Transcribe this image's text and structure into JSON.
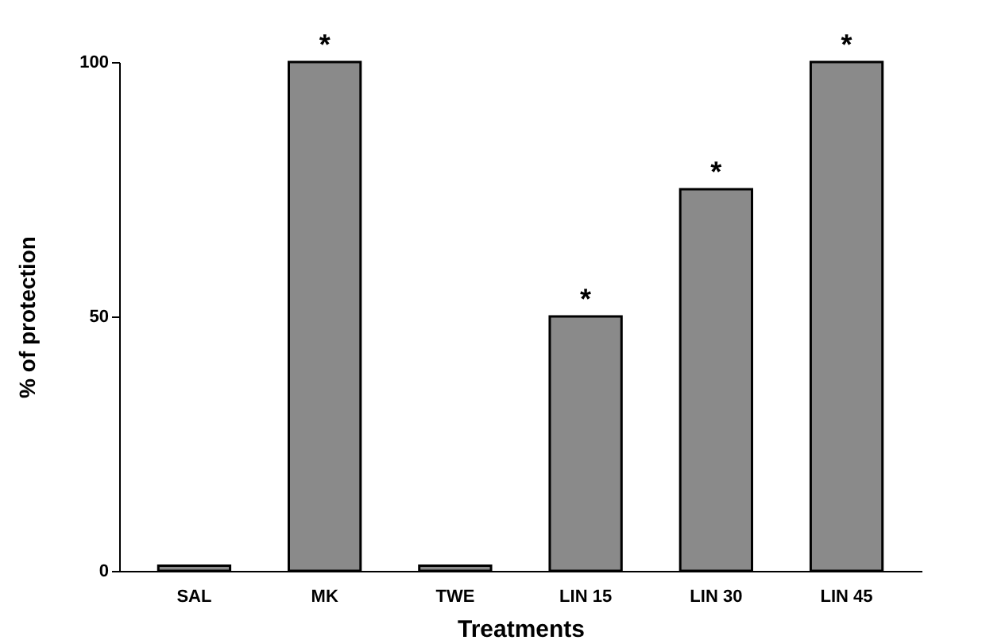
{
  "chart_data": {
    "type": "bar",
    "xlabel": "Treatments",
    "ylabel": "% of protection",
    "categories": [
      "SAL",
      "MK",
      "TWE",
      "LIN 15",
      "LIN 30",
      "LIN 45"
    ],
    "values": [
      1,
      100,
      1,
      50,
      75,
      100
    ],
    "color": "#8a8a8a",
    "ylim": [
      0,
      100
    ],
    "yticks": [
      0,
      50,
      100
    ],
    "grid": false,
    "annotations": [
      {
        "text": "*",
        "x": "MK",
        "y": 100
      },
      {
        "text": "*",
        "x": "LIN 15",
        "y": 50
      },
      {
        "text": "*",
        "x": "LIN 30",
        "y": 75
      },
      {
        "text": "*",
        "x": "LIN 45",
        "y": 100
      }
    ]
  }
}
